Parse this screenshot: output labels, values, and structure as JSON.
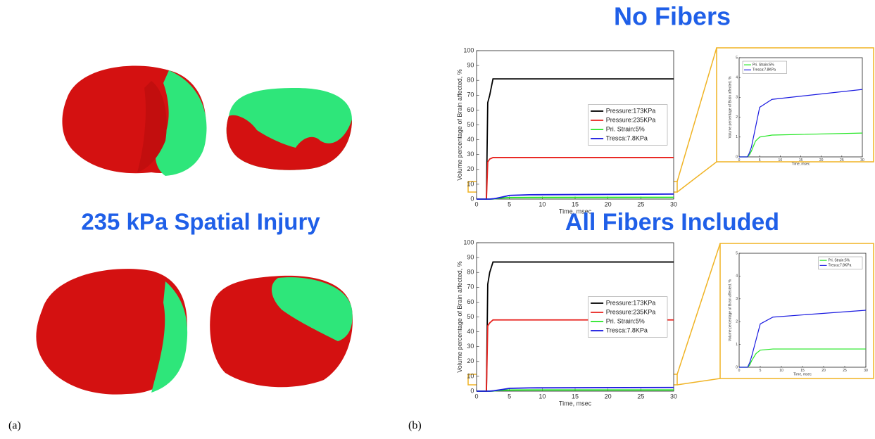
{
  "panel_a": {
    "title": "235 kPa Spatial Injury",
    "label": "(a)"
  },
  "panel_b": {
    "label": "(b)"
  },
  "chart_data": [
    {
      "type": "line",
      "title": "No Fibers",
      "x_label": "Time, msec",
      "y_label": "Volume percentage of Brain affected, %",
      "x": [
        0,
        1.5,
        1.7,
        2,
        2.5,
        3,
        4,
        5,
        8,
        30
      ],
      "series": [
        {
          "name": "Pressure:173KPa",
          "color": "#000000",
          "values": [
            0,
            0,
            65,
            70,
            81,
            81,
            81,
            81,
            81,
            81
          ]
        },
        {
          "name": "Pressure:235KPa",
          "color": "#e8201c",
          "values": [
            0,
            0,
            25,
            27,
            28,
            28,
            28,
            28,
            28,
            28
          ]
        },
        {
          "name": "Pri. Strain:5%",
          "color": "#22e622",
          "values": [
            0,
            0,
            0,
            0,
            0.1,
            0.3,
            0.8,
            1.0,
            1.1,
            1.2
          ]
        },
        {
          "name": "Tresca:7.8KPa",
          "color": "#1a1ae0",
          "values": [
            0,
            0,
            0,
            0,
            0.2,
            0.5,
            1.5,
            2.5,
            2.9,
            3.4
          ]
        }
      ],
      "xlim": [
        0,
        30
      ],
      "xticks": [
        0,
        5,
        10,
        15,
        20,
        25,
        30
      ],
      "ylim": [
        0,
        100
      ],
      "yticks": [
        0,
        10,
        20,
        30,
        40,
        50,
        60,
        70,
        80,
        90,
        100
      ],
      "legend": "center-right"
    },
    {
      "type": "line",
      "x_label": "Time, msec",
      "y_label": "Volume percentage of Brain affected, %",
      "x": [
        0,
        1.5,
        1.7,
        2,
        2.5,
        3,
        4,
        5,
        8,
        30
      ],
      "series": [
        {
          "name": "Pri. Strain:5%",
          "color": "#22e622",
          "values": [
            0,
            0,
            0,
            0,
            0.1,
            0.3,
            0.8,
            1.0,
            1.1,
            1.2
          ]
        },
        {
          "name": "Tresca:7.8KPa",
          "color": "#1a1ae0",
          "values": [
            0,
            0,
            0,
            0,
            0.2,
            0.5,
            1.5,
            2.5,
            2.9,
            3.4
          ]
        }
      ],
      "xlim": [
        0,
        30
      ],
      "xticks": [
        0,
        5,
        10,
        15,
        20,
        25,
        30
      ],
      "ylim": [
        0,
        5
      ],
      "yticks": [
        0,
        1,
        2,
        3,
        4,
        5
      ],
      "legend": "upper-left"
    },
    {
      "type": "line",
      "title": "All Fibers Included",
      "x_label": "Time, msec",
      "y_label": "Volume percentage of Brain affected, %",
      "x": [
        0,
        1.5,
        1.7,
        2,
        2.5,
        3,
        4,
        5,
        8,
        30
      ],
      "series": [
        {
          "name": "Pressure:173KPa",
          "color": "#000000",
          "values": [
            0,
            0,
            72,
            80,
            87,
            87,
            87,
            87,
            87,
            87
          ]
        },
        {
          "name": "Pressure:235KPa",
          "color": "#e8201c",
          "values": [
            0,
            0,
            44,
            46,
            48,
            48,
            48,
            48,
            48,
            48
          ]
        },
        {
          "name": "Pri. Strain:5%",
          "color": "#22e622",
          "values": [
            0,
            0,
            0,
            0,
            0.1,
            0.3,
            0.6,
            0.75,
            0.8,
            0.8
          ]
        },
        {
          "name": "Tresca:7.8KPa",
          "color": "#1a1ae0",
          "values": [
            0,
            0,
            0,
            0,
            0.2,
            0.5,
            1.2,
            1.9,
            2.2,
            2.5
          ]
        }
      ],
      "xlim": [
        0,
        30
      ],
      "xticks": [
        0,
        5,
        10,
        15,
        20,
        25,
        30
      ],
      "ylim": [
        0,
        100
      ],
      "yticks": [
        0,
        10,
        20,
        30,
        40,
        50,
        60,
        70,
        80,
        90,
        100
      ],
      "legend": "center-right"
    },
    {
      "type": "line",
      "x_label": "Time, msec",
      "y_label": "Volume percentage of Brain affected, %",
      "x": [
        0,
        1.5,
        1.7,
        2,
        2.5,
        3,
        4,
        5,
        8,
        30
      ],
      "series": [
        {
          "name": "Pri. Strain:5%",
          "color": "#22e622",
          "values": [
            0,
            0,
            0,
            0,
            0.1,
            0.3,
            0.6,
            0.75,
            0.8,
            0.8
          ]
        },
        {
          "name": "Tresca:7.8KPa",
          "color": "#1a1ae0",
          "values": [
            0,
            0,
            0,
            0,
            0.2,
            0.5,
            1.2,
            1.9,
            2.2,
            2.5
          ]
        }
      ],
      "xlim": [
        0,
        30
      ],
      "xticks": [
        0,
        5,
        10,
        15,
        20,
        25,
        30
      ],
      "ylim": [
        0,
        5
      ],
      "yticks": [
        0,
        1,
        2,
        3,
        4,
        5
      ],
      "legend": "upper-right"
    }
  ]
}
